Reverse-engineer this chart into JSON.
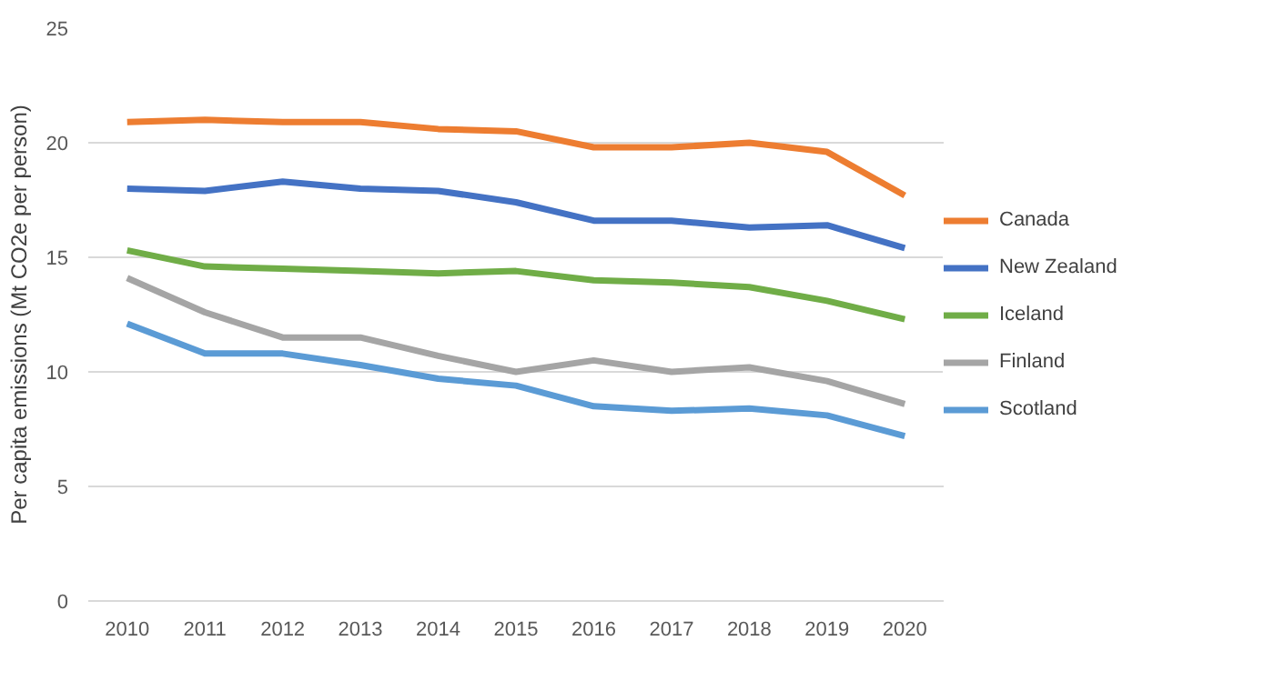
{
  "chart_data": {
    "type": "line",
    "ylabel": "Per capita emissions (Mt CO2e per person)",
    "categories": [
      "2010",
      "2011",
      "2012",
      "2013",
      "2014",
      "2015",
      "2016",
      "2017",
      "2018",
      "2019",
      "2020"
    ],
    "ylim": [
      0,
      25
    ],
    "yticks": [
      0,
      5,
      10,
      15,
      20,
      25
    ],
    "grid": "y",
    "legend": "right",
    "marker": "none",
    "line_style": "solid",
    "series": [
      {
        "name": "Canada",
        "color": "#ed7d31",
        "values": [
          20.9,
          21.0,
          20.9,
          20.9,
          20.6,
          20.5,
          19.8,
          19.8,
          20.0,
          19.6,
          17.7
        ]
      },
      {
        "name": "New Zealand",
        "color": "#4472c4",
        "values": [
          18.0,
          17.9,
          18.3,
          18.0,
          17.9,
          17.4,
          16.6,
          16.6,
          16.3,
          16.4,
          15.4
        ]
      },
      {
        "name": "Iceland",
        "color": "#70ad47",
        "values": [
          15.3,
          14.6,
          14.5,
          14.4,
          14.3,
          14.4,
          14.0,
          13.9,
          13.7,
          13.1,
          12.3
        ]
      },
      {
        "name": "Finland",
        "color": "#a5a5a5",
        "values": [
          14.1,
          12.6,
          11.5,
          11.5,
          10.7,
          10.0,
          10.5,
          10.0,
          10.2,
          9.6,
          8.6
        ]
      },
      {
        "name": "Scotland",
        "color": "#5b9bd5",
        "values": [
          12.1,
          10.8,
          10.8,
          10.3,
          9.7,
          9.4,
          8.5,
          8.3,
          8.4,
          8.1,
          7.2
        ]
      }
    ]
  }
}
